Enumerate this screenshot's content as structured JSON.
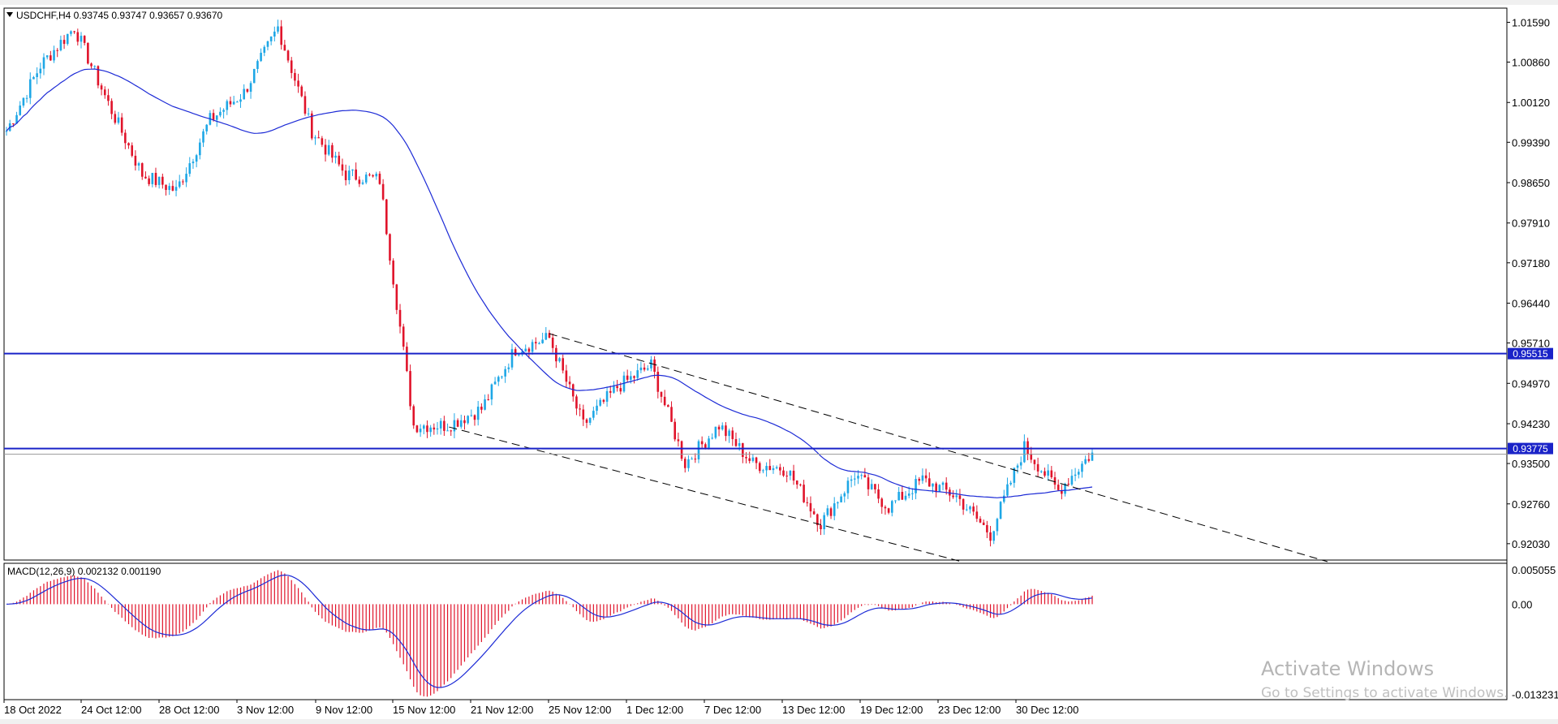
{
  "window": {
    "header": "USDCHF,H4  0.93745 0.93747 0.93657 0.93670",
    "macd_header": "MACD(12,26,9) 0.002132 0.001190"
  },
  "chart_data": {
    "type": "candlestick",
    "symbol": "USDCHF",
    "timeframe": "H4",
    "last_bar": {
      "open": 0.93745,
      "high": 0.93747,
      "low": 0.93657,
      "close": 0.9367
    },
    "ylim": [
      0.9173,
      1.0185
    ],
    "yticks": [
      "1.01590",
      "1.00860",
      "1.00120",
      "0.99390",
      "0.98650",
      "0.97910",
      "0.97180",
      "0.96440",
      "0.95710",
      "0.94970",
      "0.94230",
      "0.93500",
      "0.92760",
      "0.92030"
    ],
    "xticks": [
      "18 Oct 2022",
      "24 Oct 12:00",
      "28 Oct 12:00",
      "3 Nov 12:00",
      "9 Nov 12:00",
      "15 Nov 12:00",
      "21 Nov 12:00",
      "25 Nov 12:00",
      "1 Dec 12:00",
      "7 Dec 12:00",
      "13 Dec 12:00",
      "19 Dec 12:00",
      "23 Dec 12:00",
      "30 Dec 12:00"
    ],
    "key_points": [
      {
        "x": "18 Oct 2022",
        "y": 0.996
      },
      {
        "x": "20 Oct",
        "y": 1.008
      },
      {
        "x": "21 Oct",
        "y": 1.015
      },
      {
        "x": "24 Oct 12:00",
        "y": 1.001
      },
      {
        "x": "26 Oct",
        "y": 0.988
      },
      {
        "x": "27 Oct",
        "y": 0.985
      },
      {
        "x": "28 Oct 12:00",
        "y": 0.998
      },
      {
        "x": "1 Nov",
        "y": 1.003
      },
      {
        "x": "3 Nov 12:00",
        "y": 1.015
      },
      {
        "x": "4 Nov",
        "y": 0.996
      },
      {
        "x": "7 Nov",
        "y": 0.988
      },
      {
        "x": "9 Nov 12:00",
        "y": 0.987
      },
      {
        "x": "10 Nov",
        "y": 0.942
      },
      {
        "x": "14 Nov",
        "y": 0.942
      },
      {
        "x": "15 Nov 12:00",
        "y": 0.945
      },
      {
        "x": "18 Nov",
        "y": 0.956
      },
      {
        "x": "21 Nov 12:00",
        "y": 0.958
      },
      {
        "x": "23 Nov",
        "y": 0.942
      },
      {
        "x": "25 Nov 12:00",
        "y": 0.949
      },
      {
        "x": "29 Nov",
        "y": 0.953
      },
      {
        "x": "1 Dec 12:00",
        "y": 0.935
      },
      {
        "x": "5 Dec",
        "y": 0.942
      },
      {
        "x": "7 Dec 12:00",
        "y": 0.935
      },
      {
        "x": "12 Dec",
        "y": 0.934
      },
      {
        "x": "13 Dec 12:00",
        "y": 0.924
      },
      {
        "x": "16 Dec",
        "y": 0.933
      },
      {
        "x": "19 Dec 12:00",
        "y": 0.927
      },
      {
        "x": "21 Dec",
        "y": 0.932
      },
      {
        "x": "23 Dec 12:00",
        "y": 0.929
      },
      {
        "x": "28 Dec",
        "y": 0.922
      },
      {
        "x": "30 Dec 12:00",
        "y": 0.938
      },
      {
        "x": "2 Jan",
        "y": 0.93
      },
      {
        "x": "3 Jan",
        "y": 0.937
      }
    ],
    "hlines": [
      {
        "value": 0.95515,
        "label": "0.95515"
      },
      {
        "value": 0.93775,
        "label": "0.93775"
      }
    ],
    "macd": {
      "params": "12,26,9",
      "main": 0.002132,
      "signal": 0.00119,
      "ylim": [
        -0.014,
        0.006
      ],
      "yticks": [
        "0.005055",
        "0.00",
        "-0.013231"
      ]
    }
  },
  "watermark": {
    "line1": "Activate Windows",
    "line2": "Go to Settings to activate Windows."
  },
  "colors": {
    "bull": "#1ea7e6",
    "bear": "#e0132a",
    "ma": "#1d2bd6",
    "hline": "#1a23c8",
    "trend": "#000000"
  }
}
